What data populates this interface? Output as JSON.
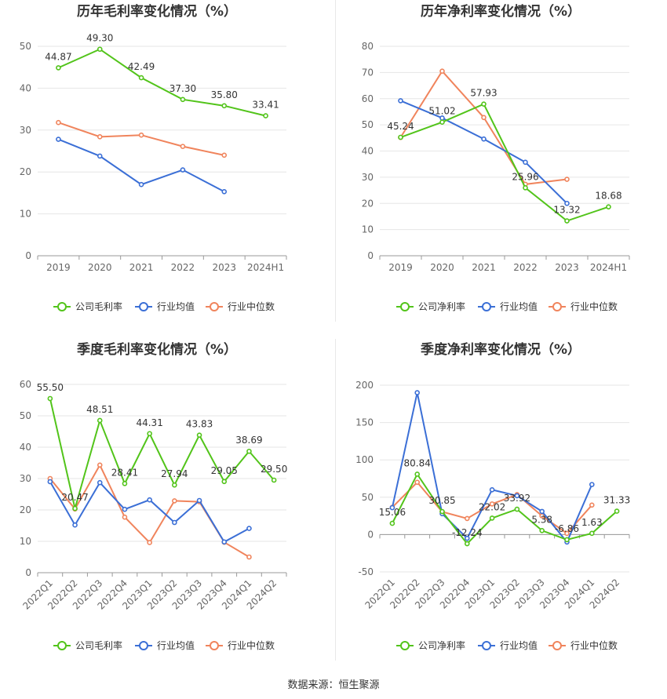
{
  "colors": {
    "company": "#52c41a",
    "industry_avg": "#3b6fd6",
    "industry_median": "#f0845c",
    "grid": "#e6e6e6",
    "axis": "#999999"
  },
  "source_text": "数据来源：恒生聚源",
  "chart_data": [
    {
      "type": "line",
      "title": "历年毛利率变化情况（%）",
      "categories": [
        "2019",
        "2020",
        "2021",
        "2022",
        "2023",
        "2024H1"
      ],
      "ylim": [
        0,
        50
      ],
      "yticks": [
        0,
        10,
        20,
        30,
        40,
        50
      ],
      "rotate_labels": false,
      "series": [
        {
          "name": "公司毛利率",
          "values": [
            44.87,
            49.3,
            42.49,
            37.3,
            35.8,
            33.41
          ],
          "labeled": true
        },
        {
          "name": "行业均值",
          "values": [
            27.8,
            23.8,
            17.0,
            20.5,
            15.3,
            null
          ],
          "labeled": false
        },
        {
          "name": "行业中位数",
          "values": [
            31.8,
            28.4,
            28.8,
            26.1,
            24.0,
            null
          ],
          "labeled": false
        }
      ]
    },
    {
      "type": "line",
      "title": "历年净利率变化情况（%）",
      "categories": [
        "2019",
        "2020",
        "2021",
        "2022",
        "2023",
        "2024H1"
      ],
      "ylim": [
        0,
        80
      ],
      "yticks": [
        0,
        10,
        20,
        30,
        40,
        50,
        60,
        70,
        80
      ],
      "rotate_labels": false,
      "series": [
        {
          "name": "公司净利率",
          "values": [
            45.24,
            51.02,
            57.93,
            25.96,
            13.32,
            18.68
          ],
          "labeled": true
        },
        {
          "name": "行业均值",
          "values": [
            59.2,
            52.6,
            44.6,
            35.7,
            20.0,
            null
          ],
          "labeled": false
        },
        {
          "name": "行业中位数",
          "values": [
            45.2,
            70.5,
            52.8,
            27.3,
            29.2,
            null
          ],
          "labeled": false
        }
      ]
    },
    {
      "type": "line",
      "title": "季度毛利率变化情况（%）",
      "categories": [
        "2022Q1",
        "2022Q2",
        "2022Q3",
        "2022Q4",
        "2023Q1",
        "2023Q2",
        "2023Q3",
        "2023Q4",
        "2024Q1",
        "2024Q2"
      ],
      "ylim": [
        0,
        60
      ],
      "yticks": [
        0,
        10,
        20,
        30,
        40,
        50,
        60
      ],
      "rotate_labels": true,
      "series": [
        {
          "name": "公司毛利率",
          "values": [
            55.5,
            20.47,
            48.51,
            28.41,
            44.31,
            27.94,
            43.83,
            29.05,
            38.69,
            29.5
          ],
          "labeled": true
        },
        {
          "name": "行业均值",
          "values": [
            29.0,
            15.2,
            28.7,
            20.2,
            23.2,
            16.0,
            23.0,
            9.8,
            14.1,
            null
          ],
          "labeled": false
        },
        {
          "name": "行业中位数",
          "values": [
            30.0,
            20.3,
            34.3,
            17.7,
            9.6,
            22.9,
            22.6,
            9.7,
            5.0,
            null
          ],
          "labeled": false
        }
      ]
    },
    {
      "type": "line",
      "title": "季度净利率变化情况（%）",
      "categories": [
        "2022Q1",
        "2022Q2",
        "2022Q3",
        "2022Q4",
        "2023Q1",
        "2023Q2",
        "2023Q3",
        "2023Q4",
        "2024Q1",
        "2024Q2"
      ],
      "ylim": [
        -50,
        200
      ],
      "yticks": [
        -50,
        0,
        50,
        100,
        150,
        200
      ],
      "rotate_labels": true,
      "series": [
        {
          "name": "公司净利率",
          "values": [
            15.06,
            80.84,
            30.85,
            -12.24,
            22.02,
            33.92,
            5.38,
            -6.86,
            1.63,
            31.33
          ],
          "labeled": true
        },
        {
          "name": "行业均值",
          "values": [
            36.0,
            190.0,
            27.9,
            -5.0,
            60.0,
            52.0,
            31.0,
            -10.0,
            67.0,
            null
          ],
          "labeled": false
        },
        {
          "name": "行业中位数",
          "values": [
            36.5,
            70.0,
            30.5,
            21.5,
            41.0,
            53.5,
            25.0,
            1.5,
            39.5,
            null
          ],
          "labeled": false
        }
      ]
    }
  ]
}
